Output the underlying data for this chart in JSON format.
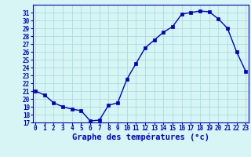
{
  "hours": [
    0,
    1,
    2,
    3,
    4,
    5,
    6,
    7,
    8,
    9,
    10,
    11,
    12,
    13,
    14,
    15,
    16,
    17,
    18,
    19,
    20,
    21,
    22,
    23
  ],
  "temps": [
    21.0,
    20.5,
    19.5,
    19.0,
    18.7,
    18.5,
    17.2,
    17.3,
    19.2,
    19.5,
    22.5,
    24.5,
    26.5,
    27.5,
    28.5,
    29.2,
    30.8,
    31.0,
    31.2,
    31.1,
    30.2,
    29.0,
    26.0,
    23.5
  ],
  "line_color": "#0000cc",
  "marker": "s",
  "marker_size": 2.5,
  "bg_color": "#d8f5f5",
  "grid_color": "#aadddd",
  "text_color": "#0000cc",
  "xlabel": "Graphe des températures (°c)",
  "ylim": [
    17,
    32
  ],
  "xlim": [
    -0.3,
    23.3
  ],
  "yticks": [
    17,
    18,
    19,
    20,
    21,
    22,
    23,
    24,
    25,
    26,
    27,
    28,
    29,
    30,
    31
  ],
  "xticks": [
    0,
    1,
    2,
    3,
    4,
    5,
    6,
    7,
    8,
    9,
    10,
    11,
    12,
    13,
    14,
    15,
    16,
    17,
    18,
    19,
    20,
    21,
    22,
    23
  ],
  "spine_color": "#0000cc",
  "label_fontsize": 5.5,
  "xlabel_fontsize": 7.5,
  "linewidth": 1.0
}
